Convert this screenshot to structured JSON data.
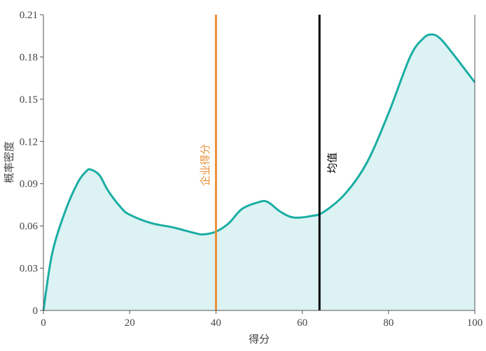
{
  "chart_data": {
    "type": "area",
    "x_label": "得分",
    "y_label": "概率密度",
    "x": [
      0,
      2,
      5,
      8,
      10,
      11,
      13,
      15,
      18,
      20,
      25,
      30,
      35,
      37,
      40,
      43,
      46,
      50,
      52,
      55,
      58,
      62,
      65,
      70,
      75,
      80,
      85,
      88,
      90,
      92,
      95,
      100
    ],
    "series": [
      {
        "color": "#1aada4",
        "fill": "#dcf2f3",
        "values": [
          0,
          0.04,
          0.07,
          0.091,
          0.099,
          0.1,
          0.096,
          0.085,
          0.073,
          0.068,
          0.062,
          0.059,
          0.055,
          0.054,
          0.056,
          0.062,
          0.072,
          0.077,
          0.077,
          0.07,
          0.066,
          0.067,
          0.07,
          0.083,
          0.105,
          0.14,
          0.18,
          0.193,
          0.196,
          0.193,
          0.182,
          0.162
        ]
      }
    ],
    "vlines": [
      {
        "x": 40,
        "label": "企业得分",
        "color": "#e8913a"
      },
      {
        "x": 64,
        "label": "均值",
        "color": "#000000"
      }
    ],
    "xlim": [
      0,
      100
    ],
    "xticks": [
      0,
      20,
      40,
      60,
      80,
      100
    ],
    "ylim": [
      0,
      0.21
    ],
    "yticks": [
      0,
      0.03,
      0.06,
      0.09,
      0.12,
      0.15,
      0.18,
      0.21
    ]
  }
}
